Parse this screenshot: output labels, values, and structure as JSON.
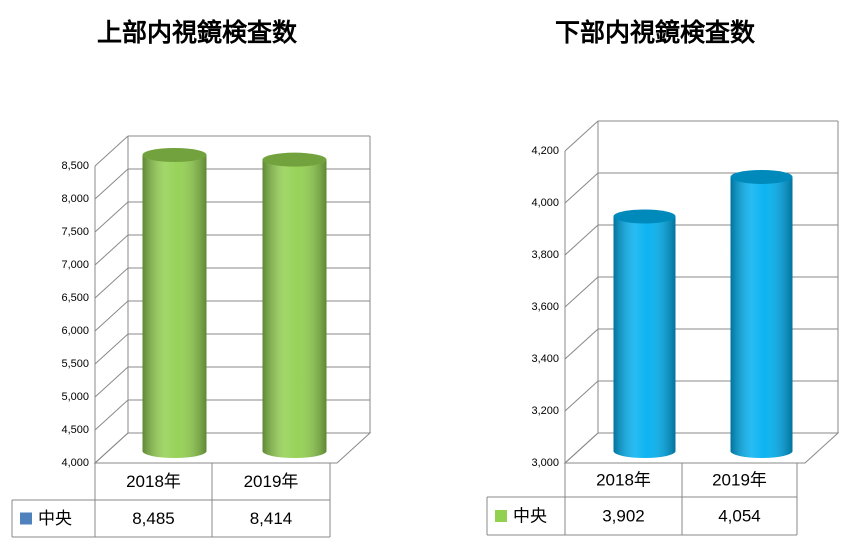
{
  "chart_data": [
    {
      "type": "bar",
      "title": "上部内視鏡検査数",
      "categories": [
        "2018年",
        "2019年"
      ],
      "series": [
        {
          "name": "中央",
          "color": "#92d050",
          "legend_color": "#4f81bd",
          "values": [
            8485,
            8414
          ],
          "value_labels": [
            "8,485",
            "8,414"
          ]
        }
      ],
      "ylim": [
        4000,
        8500
      ],
      "yticks": [
        {
          "value": 4000,
          "label": "4,000"
        },
        {
          "value": 4500,
          "label": "4,500"
        },
        {
          "value": 5000,
          "label": "5,000"
        },
        {
          "value": 5500,
          "label": "5,500"
        },
        {
          "value": 6000,
          "label": "6,000"
        },
        {
          "value": 6500,
          "label": "6,500"
        },
        {
          "value": 7000,
          "label": "7,000"
        },
        {
          "value": 7500,
          "label": "7,500"
        },
        {
          "value": 8000,
          "label": "8,000"
        },
        {
          "value": 8500,
          "label": "8,500"
        }
      ],
      "grid": true
    },
    {
      "type": "bar",
      "title": "下部内視鏡検査数",
      "categories": [
        "2018年",
        "2019年"
      ],
      "series": [
        {
          "name": "中央",
          "color": "#00b0f0",
          "legend_color": "#92d050",
          "values": [
            3902,
            4054
          ],
          "value_labels": [
            "3,902",
            "4,054"
          ]
        }
      ],
      "ylim": [
        3000,
        4200
      ],
      "yticks": [
        {
          "value": 3000,
          "label": "3,000"
        },
        {
          "value": 3200,
          "label": "3,200"
        },
        {
          "value": 3400,
          "label": "3,400"
        },
        {
          "value": 3600,
          "label": "3,600"
        },
        {
          "value": 3800,
          "label": "3,800"
        },
        {
          "value": 4000,
          "label": "4,000"
        },
        {
          "value": 4200,
          "label": "4,200"
        }
      ],
      "grid": true
    }
  ]
}
